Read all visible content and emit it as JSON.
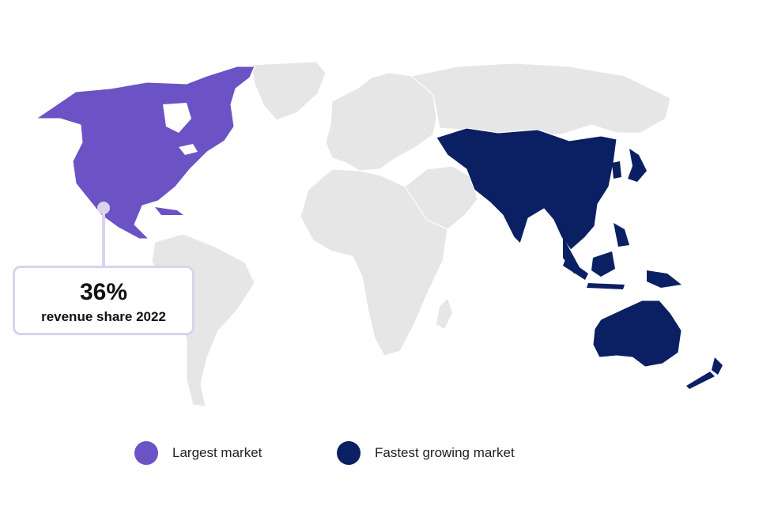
{
  "colors": {
    "largest": "#6b53c5",
    "fastest": "#0b1f63",
    "other": "#e6e6e6",
    "callout_border": "#d9d3ec"
  },
  "callout": {
    "value": "36%",
    "label": "revenue share 2022"
  },
  "legend": [
    {
      "label": "Largest market",
      "color": "#6b53c5"
    },
    {
      "label": "Fastest growing market",
      "color": "#0b1f63"
    }
  ],
  "regions": {
    "largest_market": [
      "North America"
    ],
    "fastest_growing_market": [
      "Asia Pacific"
    ]
  }
}
